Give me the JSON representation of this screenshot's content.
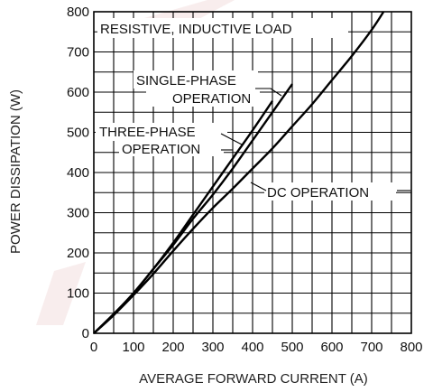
{
  "chart_data": {
    "type": "line",
    "title": "",
    "xlabel": "AVERAGE FORWARD CURRENT (A)",
    "ylabel": "POWER DISSIPATION (W)",
    "xlim": [
      0,
      800
    ],
    "ylim": [
      0,
      800
    ],
    "x_ticks": [
      "0",
      "100",
      "200",
      "300",
      "400",
      "500",
      "600",
      "700",
      "800"
    ],
    "y_ticks": [
      "0",
      "100",
      "200",
      "300",
      "400",
      "500",
      "600",
      "700",
      "800"
    ],
    "grid": true,
    "series": [
      {
        "name": "SINGLE-PHASE OPERATION",
        "x": [
          0,
          50,
          100,
          150,
          200,
          250,
          300,
          350,
          400,
          450,
          500
        ],
        "y": [
          0,
          48,
          100,
          160,
          220,
          285,
          345,
          410,
          480,
          550,
          620
        ]
      },
      {
        "name": "THREE-PHASE OPERATION",
        "x": [
          0,
          50,
          100,
          150,
          200,
          250,
          300,
          350,
          400,
          450
        ],
        "y": [
          0,
          47,
          100,
          160,
          225,
          295,
          365,
          435,
          505,
          578
        ]
      },
      {
        "name": "DC OPERATION",
        "x": [
          0,
          50,
          100,
          150,
          200,
          250,
          300,
          350,
          400,
          450,
          500,
          550,
          600,
          650,
          700,
          730
        ],
        "y": [
          0,
          45,
          95,
          148,
          205,
          260,
          312,
          360,
          410,
          460,
          515,
          570,
          630,
          690,
          755,
          800
        ]
      }
    ],
    "annotations": {
      "load": "RESISTIVE, INDUCTIVE LOAD",
      "single_line1": "SINGLE-PHASE",
      "single_line2": "OPERATION",
      "three_line1": "THREE-PHASE",
      "three_line2": "OPERATION",
      "dc": "DC OPERATION"
    }
  }
}
